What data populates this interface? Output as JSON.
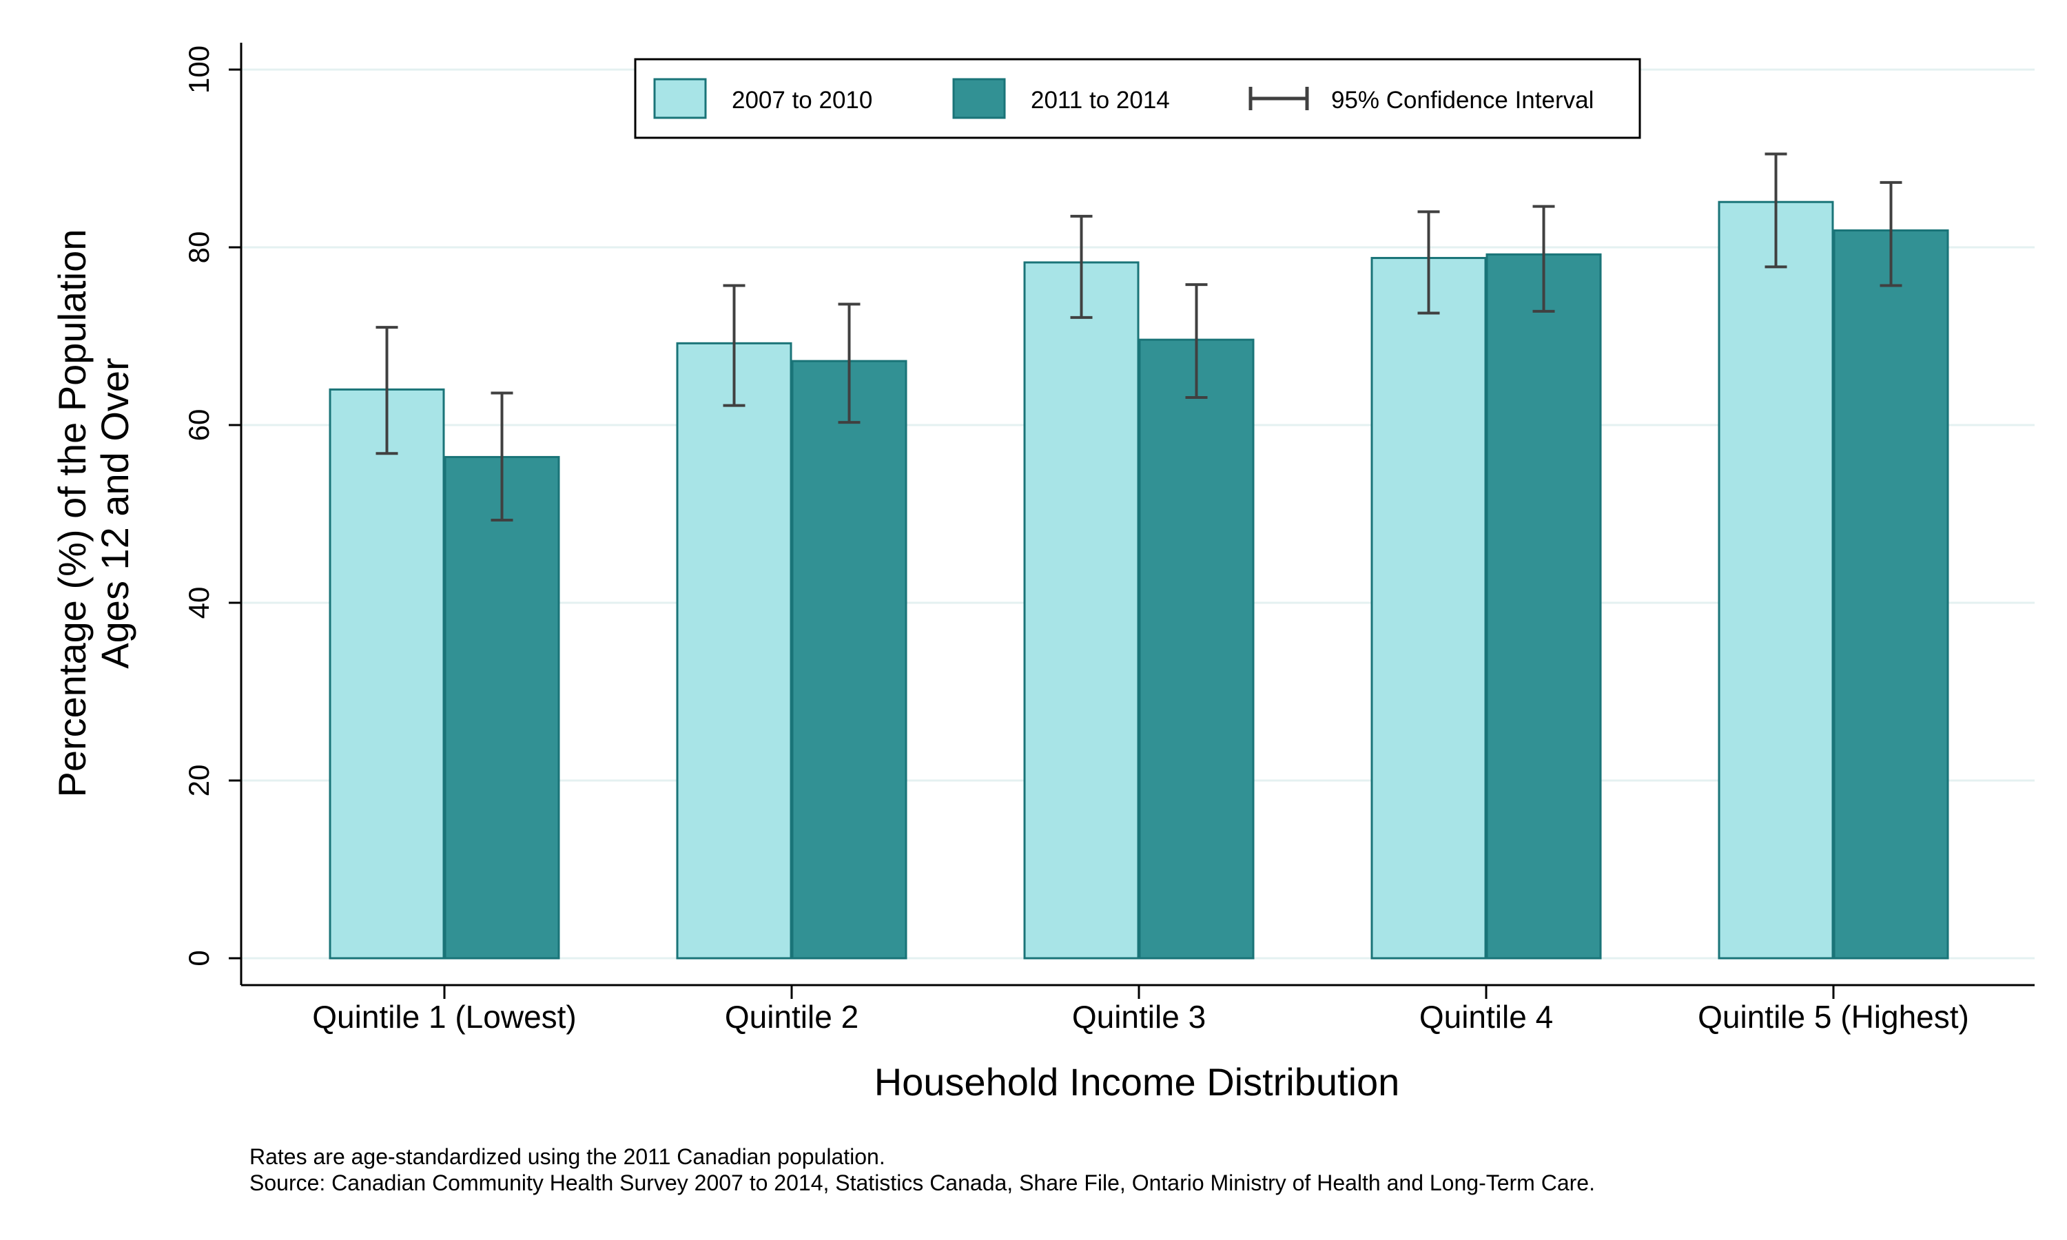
{
  "chart_data": {
    "type": "bar",
    "xlabel": "Household Income Distribution",
    "ylabel": [
      "Percentage (%) of the Population",
      "Ages 12 and Over"
    ],
    "ylim": [
      0,
      100
    ],
    "yticks": [
      0,
      20,
      40,
      60,
      80,
      100
    ],
    "grid": true,
    "categories": [
      "Quintile 1 (Lowest)",
      "Quintile 2",
      "Quintile 3",
      "Quintile 4",
      "Quintile 5 (Highest)"
    ],
    "series": [
      {
        "name": "2007 to 2010",
        "color": "#a8e4e7",
        "values": [
          64.0,
          69.2,
          78.3,
          78.8,
          85.1
        ],
        "ci_low": [
          56.8,
          62.2,
          72.1,
          72.6,
          77.8
        ],
        "ci_high": [
          71.0,
          75.7,
          83.5,
          84.0,
          90.5
        ]
      },
      {
        "name": "2011 to 2014",
        "color": "#329194",
        "values": [
          56.4,
          67.2,
          69.6,
          79.2,
          81.9
        ],
        "ci_low": [
          49.3,
          60.3,
          63.1,
          72.8,
          75.7
        ],
        "ci_high": [
          63.6,
          73.6,
          75.8,
          84.6,
          87.3
        ]
      }
    ],
    "legend": {
      "position": "top-center",
      "ci_label": "95% Confidence Interval"
    },
    "notes": [
      "Rates are age-standardized using the 2011 Canadian population.",
      "Source: Canadian Community Health Survey 2007 to 2014, Statistics Canada, Share File, Ontario Ministry of Health and Long-Term Care."
    ],
    "colors": {
      "bar_border": "#1a7478",
      "error_bar": "#404040",
      "grid": "#e4f1f1",
      "axis": "#000000"
    }
  }
}
